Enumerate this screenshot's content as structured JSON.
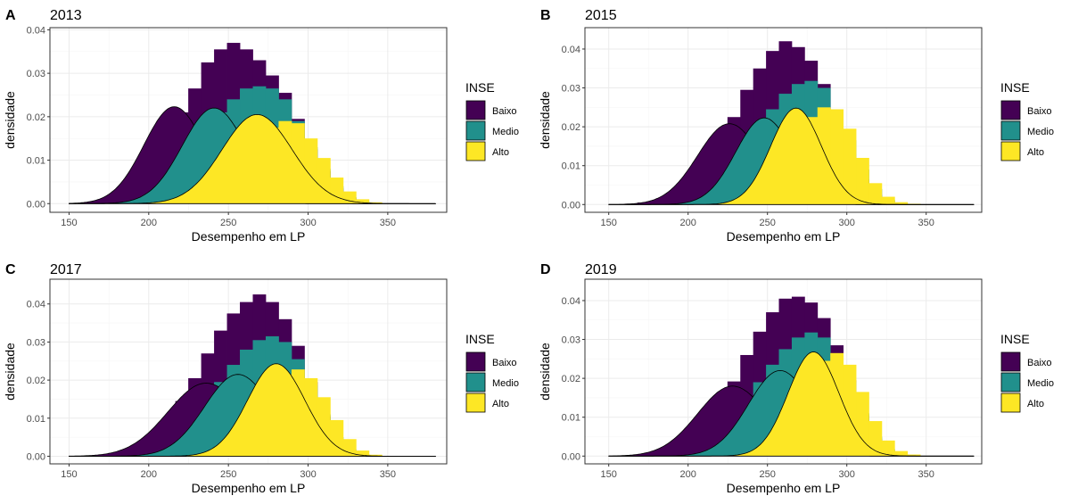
{
  "chart_data": [
    {
      "type": "histogram+density",
      "letter": "A",
      "title": "2013",
      "xlabel": "Desempenho em LP",
      "ylabel": "densidade",
      "xlim": [
        138,
        387
      ],
      "ylim": [
        -0.002,
        0.0405
      ],
      "xticks": [
        "150",
        "200",
        "250",
        "300",
        "350"
      ],
      "yticks": [
        "0.00",
        "0.01",
        "0.02",
        "0.03",
        "0.04"
      ],
      "grid": true,
      "legend": {
        "title": "INSE",
        "position": "right",
        "entries": [
          "Baixo",
          "Medio",
          "Alto"
        ]
      },
      "bins": {
        "start": 160,
        "width": 8.1,
        "baixo": [
          0.0003,
          0.0007,
          0.0015,
          0.003,
          0.0055,
          0.009,
          0.0145,
          0.021,
          0.0265,
          0.0325,
          0.0355,
          0.037,
          0.0355,
          0.033,
          0.0295,
          0.0255,
          0.0195,
          0.0125,
          0.0075,
          0.0035,
          0.0012,
          0.0004,
          0.0001
        ],
        "medio": [
          0.0001,
          0.0003,
          0.0007,
          0.0013,
          0.0025,
          0.004,
          0.0065,
          0.0095,
          0.0135,
          0.0175,
          0.021,
          0.024,
          0.0265,
          0.027,
          0.0265,
          0.024,
          0.019,
          0.013,
          0.008,
          0.004,
          0.0015,
          0.0005,
          0.0001
        ],
        "alto": [
          0.0,
          0.0,
          0.0001,
          0.0002,
          0.0004,
          0.0008,
          0.0013,
          0.002,
          0.0032,
          0.0048,
          0.0068,
          0.0092,
          0.012,
          0.015,
          0.0175,
          0.019,
          0.0185,
          0.015,
          0.0105,
          0.006,
          0.0028,
          0.001,
          0.0003
        ]
      },
      "densities": {
        "baixo": {
          "mu": 216,
          "sigma": 19,
          "peak": 0.0223
        },
        "medio": {
          "mu": 241,
          "sigma": 20,
          "peak": 0.022
        },
        "alto": {
          "mu": 268,
          "sigma": 22,
          "peak": 0.0205
        }
      },
      "x_range": [
        150,
        380
      ]
    },
    {
      "type": "histogram+density",
      "letter": "B",
      "title": "2015",
      "xlabel": "Desempenho em LP",
      "ylabel": "densidade",
      "xlim": [
        135,
        385
      ],
      "ylim": [
        -0.002,
        0.0455
      ],
      "xticks": [
        "150",
        "200",
        "250",
        "300",
        "350"
      ],
      "yticks": [
        "0.00",
        "0.01",
        "0.02",
        "0.03",
        "0.04"
      ],
      "grid": true,
      "legend": {
        "title": "INSE",
        "position": "right",
        "entries": [
          "Baixo",
          "Medio",
          "Alto"
        ]
      },
      "bins": {
        "start": 160,
        "width": 8.1,
        "baixo": [
          0.0002,
          0.0005,
          0.001,
          0.002,
          0.0035,
          0.0065,
          0.0105,
          0.016,
          0.0225,
          0.0295,
          0.035,
          0.0395,
          0.042,
          0.0405,
          0.037,
          0.031,
          0.022,
          0.013,
          0.0065,
          0.0025,
          0.0008,
          0.0002,
          0.0001
        ],
        "medio": [
          0.0001,
          0.0002,
          0.0004,
          0.0008,
          0.0015,
          0.0027,
          0.0045,
          0.0072,
          0.0108,
          0.015,
          0.0195,
          0.0245,
          0.0285,
          0.031,
          0.0318,
          0.03,
          0.0245,
          0.0165,
          0.009,
          0.004,
          0.0012,
          0.0004,
          0.0001
        ],
        "alto": [
          0.0,
          0.0,
          0.0,
          0.0001,
          0.0003,
          0.0006,
          0.001,
          0.0017,
          0.0028,
          0.0045,
          0.0068,
          0.01,
          0.0138,
          0.0185,
          0.0225,
          0.025,
          0.0245,
          0.0195,
          0.012,
          0.0055,
          0.002,
          0.0006,
          0.0002
        ]
      },
      "densities": {
        "baixo": {
          "mu": 226,
          "sigma": 20,
          "peak": 0.0208
        },
        "medio": {
          "mu": 248,
          "sigma": 18,
          "peak": 0.0223
        },
        "alto": {
          "mu": 268,
          "sigma": 16,
          "peak": 0.0248
        }
      },
      "x_range": [
        150,
        380
      ]
    },
    {
      "type": "histogram+density",
      "letter": "C",
      "title": "2017",
      "xlabel": "Desempenho em LP",
      "ylabel": "densidade",
      "xlim": [
        138,
        387
      ],
      "ylim": [
        -0.002,
        0.0465
      ],
      "xticks": [
        "150",
        "200",
        "250",
        "300",
        "350"
      ],
      "yticks": [
        "0.00",
        "0.01",
        "0.02",
        "0.03",
        "0.04"
      ],
      "grid": true,
      "legend": {
        "title": "INSE",
        "position": "right",
        "entries": [
          "Baixo",
          "Medio",
          "Alto"
        ]
      },
      "bins": {
        "start": 160,
        "width": 8.1,
        "baixo": [
          0.0002,
          0.0004,
          0.0008,
          0.0015,
          0.003,
          0.0055,
          0.0095,
          0.0145,
          0.0205,
          0.027,
          0.033,
          0.0375,
          0.0405,
          0.0425,
          0.0405,
          0.036,
          0.029,
          0.0195,
          0.0105,
          0.0045,
          0.0015,
          0.0004,
          0.0001
        ],
        "medio": [
          0.0001,
          0.0002,
          0.0004,
          0.0008,
          0.0015,
          0.0027,
          0.0045,
          0.0072,
          0.0108,
          0.015,
          0.0195,
          0.024,
          0.028,
          0.0305,
          0.0315,
          0.03,
          0.0255,
          0.0185,
          0.011,
          0.005,
          0.0018,
          0.0005,
          0.0001
        ],
        "alto": [
          0.0,
          0.0,
          0.0,
          0.0001,
          0.0002,
          0.0004,
          0.0008,
          0.0014,
          0.0024,
          0.0038,
          0.0058,
          0.0085,
          0.0118,
          0.0155,
          0.019,
          0.0215,
          0.0228,
          0.0205,
          0.0155,
          0.0095,
          0.0045,
          0.0015,
          0.0004
        ]
      },
      "densities": {
        "baixo": {
          "mu": 236,
          "sigma": 24,
          "peak": 0.0192
        },
        "medio": {
          "mu": 256,
          "sigma": 21,
          "peak": 0.0215
        },
        "alto": {
          "mu": 280,
          "sigma": 18,
          "peak": 0.0243
        }
      },
      "x_range": [
        150,
        380
      ]
    },
    {
      "type": "histogram+density",
      "letter": "D",
      "title": "2019",
      "xlabel": "Desempenho em LP",
      "ylabel": "densidade",
      "xlim": [
        135,
        385
      ],
      "ylim": [
        -0.002,
        0.0455
      ],
      "xticks": [
        "150",
        "200",
        "250",
        "300",
        "350"
      ],
      "yticks": [
        "0.00",
        "0.01",
        "0.02",
        "0.03",
        "0.04"
      ],
      "grid": true,
      "legend": {
        "title": "INSE",
        "position": "right",
        "entries": [
          "Baixo",
          "Medio",
          "Alto"
        ]
      },
      "bins": {
        "start": 160,
        "width": 8.1,
        "baixo": [
          0.0002,
          0.0004,
          0.0008,
          0.0015,
          0.0028,
          0.005,
          0.0085,
          0.0132,
          0.0192,
          0.026,
          0.032,
          0.037,
          0.0405,
          0.041,
          0.0395,
          0.0355,
          0.0285,
          0.0195,
          0.0105,
          0.0045,
          0.0015,
          0.0004,
          0.0001
        ],
        "medio": [
          0.0001,
          0.0002,
          0.0004,
          0.0008,
          0.0014,
          0.0025,
          0.0042,
          0.0068,
          0.0102,
          0.0145,
          0.019,
          0.0235,
          0.0275,
          0.0305,
          0.0318,
          0.0305,
          0.026,
          0.019,
          0.011,
          0.005,
          0.0018,
          0.0005,
          0.0001
        ],
        "alto": [
          0.0,
          0.0,
          0.0,
          0.0001,
          0.0002,
          0.0004,
          0.0007,
          0.0013,
          0.0022,
          0.0036,
          0.0056,
          0.0083,
          0.0118,
          0.016,
          0.0205,
          0.0245,
          0.0265,
          0.0235,
          0.0165,
          0.009,
          0.004,
          0.0013,
          0.0004
        ]
      },
      "densities": {
        "baixo": {
          "mu": 228,
          "sigma": 22,
          "peak": 0.018
        },
        "medio": {
          "mu": 258,
          "sigma": 20,
          "peak": 0.022
        },
        "alto": {
          "mu": 279,
          "sigma": 16,
          "peak": 0.0268
        }
      },
      "x_range": [
        150,
        380
      ]
    }
  ],
  "colors": {
    "baixo": "#440154",
    "medio": "#21908C",
    "alto": "#FDE725",
    "panel_border": "#333333",
    "grid_major": "#ebebeb",
    "grid_minor": "#f5f5f5",
    "tick_text": "#4d4d4d"
  }
}
